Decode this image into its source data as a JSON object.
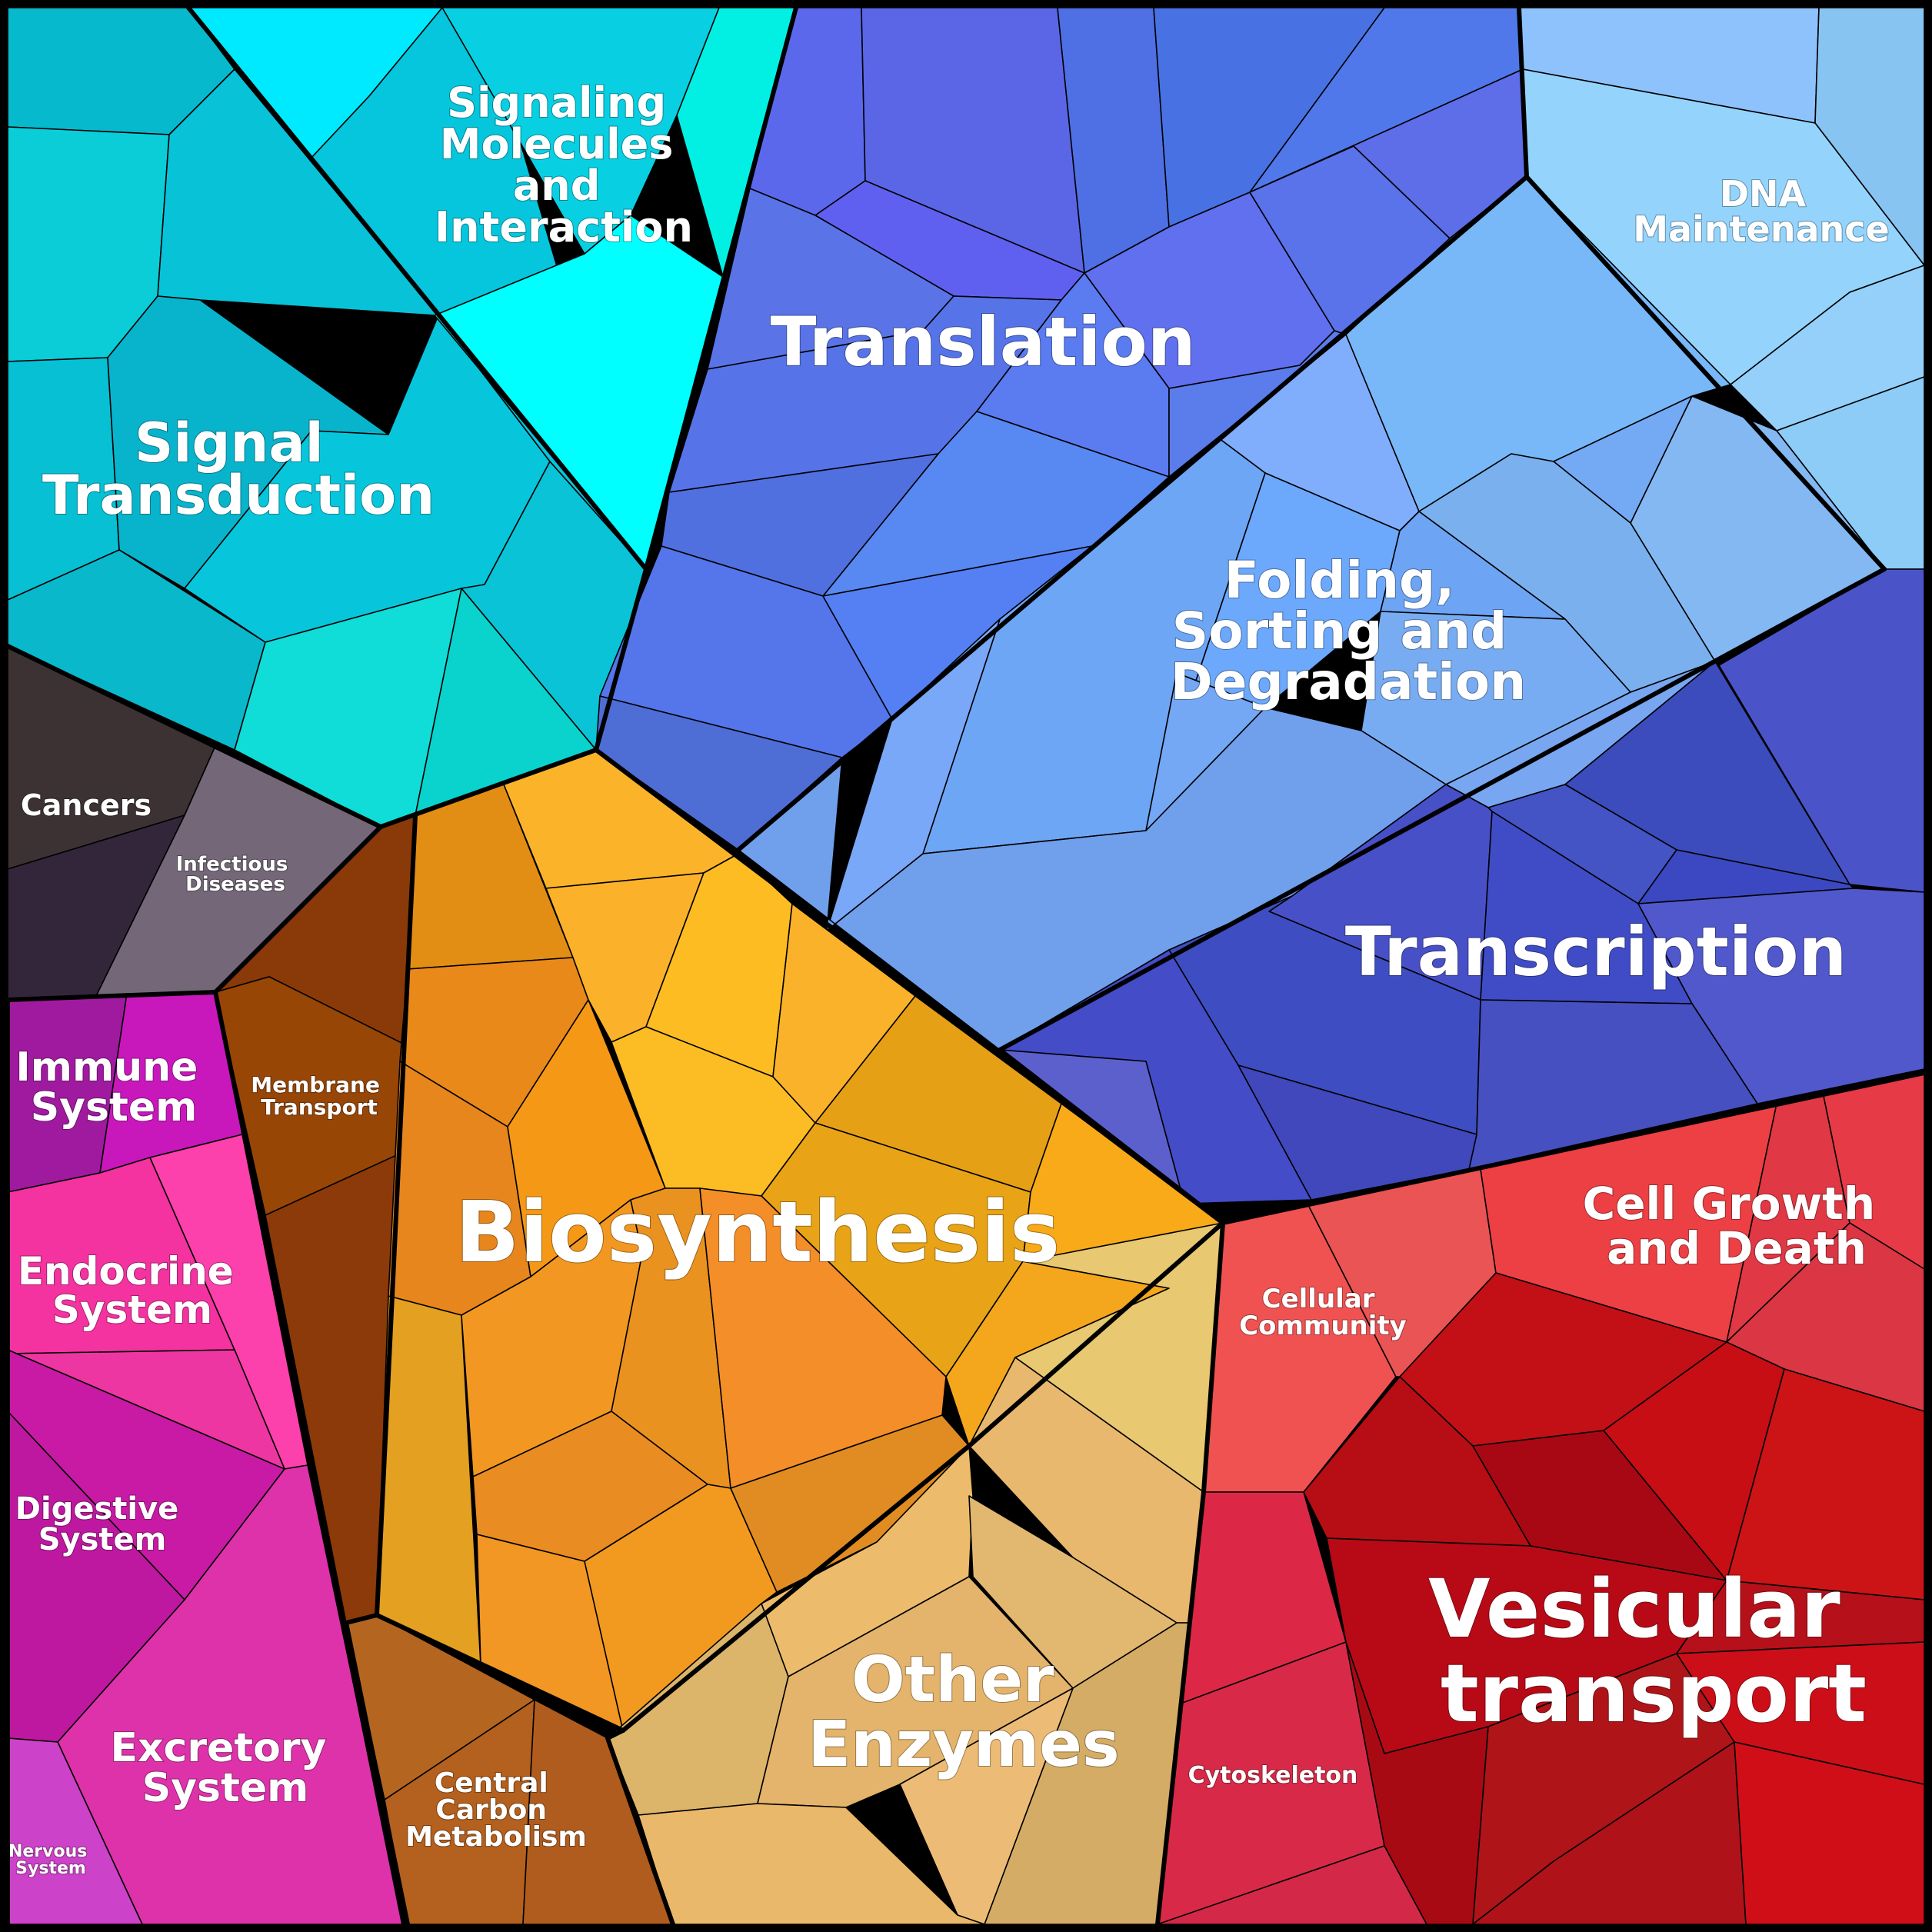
{
  "diagram": {
    "type": "voronoi-treemap",
    "categories": [
      {
        "id": "signal-transduction",
        "lines": [
          "Signal",
          "Transduction"
        ],
        "color": "#08c4d6"
      },
      {
        "id": "signaling-molecules",
        "lines": [
          "Signaling",
          "Molecules",
          "and",
          "Interaction"
        ],
        "color": "#0ad8e8"
      },
      {
        "id": "translation",
        "lines": [
          "Translation"
        ],
        "color": "#5870e6"
      },
      {
        "id": "dna-maintenance",
        "lines": [
          "DNA",
          "Maintenance"
        ],
        "color": "#8dc6f6"
      },
      {
        "id": "folding",
        "lines": [
          "Folding,",
          "Sorting and",
          "Degradation"
        ],
        "color": "#72a8f0"
      },
      {
        "id": "transcription",
        "lines": [
          "Transcription"
        ],
        "color": "#4450c6"
      },
      {
        "id": "cancers",
        "lines": [
          "Cancers"
        ],
        "color": "#3a2e36"
      },
      {
        "id": "infectious-diseases",
        "lines": [
          "Infectious",
          "Diseases"
        ],
        "color": "#766878"
      },
      {
        "id": "immune-system",
        "lines": [
          "Immune",
          "System"
        ],
        "color": "#b418b0"
      },
      {
        "id": "endocrine-system",
        "lines": [
          "Endocrine",
          "System"
        ],
        "color": "#f23aa2"
      },
      {
        "id": "digestive-system",
        "lines": [
          "Digestive",
          "System"
        ],
        "color": "#c41ca4"
      },
      {
        "id": "excretory-system",
        "lines": [
          "Excretory",
          "System"
        ],
        "color": "#de34ac"
      },
      {
        "id": "nervous-system",
        "lines": [
          "Nervous",
          "System"
        ],
        "color": "#d040c4"
      },
      {
        "id": "membrane-transport",
        "lines": [
          "Membrane",
          "Transport"
        ],
        "color": "#8e3e0c"
      },
      {
        "id": "biosynthesis",
        "lines": [
          "Biosynthesis"
        ],
        "color": "#f0a226"
      },
      {
        "id": "central-carbon-metabolism",
        "lines": [
          "Central",
          "Carbon",
          "Metabolism"
        ],
        "color": "#b2661e"
      },
      {
        "id": "other-enzymes",
        "lines": [
          "Other",
          "Enzymes"
        ],
        "color": "#e0b46c"
      },
      {
        "id": "cellular-community",
        "lines": [
          "Cellular",
          "Community"
        ],
        "color": "#f25454"
      },
      {
        "id": "cell-growth-and-death",
        "lines": [
          "Cell Growth",
          "and Death"
        ],
        "color": "#e43a44"
      },
      {
        "id": "cytoskeleton",
        "lines": [
          "Cytoskeleton"
        ],
        "color": "#dc2a48"
      },
      {
        "id": "vesicular-transport",
        "lines": [
          "Vesicular",
          "transport"
        ],
        "color": "#c00c14"
      }
    ]
  }
}
